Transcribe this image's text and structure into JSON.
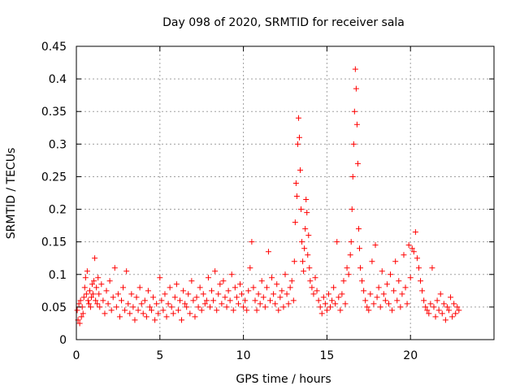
{
  "chart_data": {
    "type": "scatter",
    "title": "Day 098 of 2020, SRMTID for receiver sala",
    "xlabel": "GPS time / hours",
    "ylabel": "SRMTID / TECUs",
    "xlim": [
      0,
      25
    ],
    "ylim": [
      0,
      0.45
    ],
    "xticks": [
      0,
      5,
      10,
      15,
      20
    ],
    "xtick_labels": [
      "0",
      "5",
      "10",
      "15",
      "20"
    ],
    "yticks": [
      0,
      0.05,
      0.1,
      0.15,
      0.2,
      0.25,
      0.3,
      0.35,
      0.4,
      0.45
    ],
    "ytick_labels": [
      "0",
      "0.05",
      "0.1",
      "0.15",
      "0.2",
      "0.25",
      "0.3",
      "0.35",
      "0.4",
      "0.45"
    ],
    "grid": true,
    "marker": "plus",
    "color": "#ff0000",
    "series": [
      {
        "name": "SRMTID",
        "x": [
          0.05,
          0.1,
          0.15,
          0.2,
          0.25,
          0.3,
          0.35,
          0.4,
          0.45,
          0.5,
          0.55,
          0.6,
          0.65,
          0.7,
          0.75,
          0.8,
          0.85,
          0.9,
          0.95,
          1.0,
          1.05,
          1.1,
          1.15,
          1.2,
          1.25,
          1.3,
          1.35,
          1.4,
          1.5,
          1.6,
          1.7,
          1.8,
          1.9,
          2.0,
          2.1,
          2.2,
          2.3,
          2.4,
          2.5,
          2.6,
          2.7,
          2.8,
          2.9,
          3.0,
          3.1,
          3.2,
          3.3,
          3.4,
          3.5,
          3.6,
          3.7,
          3.8,
          3.9,
          4.0,
          4.1,
          4.2,
          4.3,
          4.4,
          4.5,
          4.6,
          4.7,
          4.8,
          4.9,
          5.0,
          5.1,
          5.2,
          5.3,
          5.4,
          5.5,
          5.6,
          5.7,
          5.8,
          5.9,
          6.0,
          6.1,
          6.2,
          6.3,
          6.4,
          6.5,
          6.6,
          6.7,
          6.8,
          6.9,
          7.0,
          7.1,
          7.2,
          7.3,
          7.4,
          7.5,
          7.6,
          7.7,
          7.8,
          7.9,
          8.0,
          8.1,
          8.2,
          8.3,
          8.4,
          8.5,
          8.6,
          8.7,
          8.8,
          8.9,
          9.0,
          9.1,
          9.2,
          9.3,
          9.4,
          9.5,
          9.6,
          9.7,
          9.8,
          9.9,
          10.0,
          10.1,
          10.2,
          10.3,
          10.4,
          10.5,
          10.6,
          10.7,
          10.8,
          10.9,
          11.0,
          11.1,
          11.2,
          11.3,
          11.4,
          11.5,
          11.6,
          11.7,
          11.8,
          11.9,
          12.0,
          12.1,
          12.2,
          12.3,
          12.4,
          12.5,
          12.6,
          12.7,
          12.8,
          12.9,
          13.0,
          13.05,
          13.1,
          13.15,
          13.2,
          13.25,
          13.3,
          13.35,
          13.4,
          13.45,
          13.5,
          13.55,
          13.6,
          13.65,
          13.7,
          13.75,
          13.8,
          13.85,
          13.9,
          13.95,
          14.0,
          14.1,
          14.2,
          14.3,
          14.4,
          14.5,
          14.6,
          14.7,
          14.8,
          14.9,
          15.0,
          15.1,
          15.2,
          15.3,
          15.4,
          15.5,
          15.6,
          15.7,
          15.8,
          15.9,
          16.0,
          16.1,
          16.2,
          16.3,
          16.4,
          16.45,
          16.5,
          16.55,
          16.6,
          16.65,
          16.7,
          16.75,
          16.8,
          16.85,
          16.9,
          16.95,
          17.0,
          17.1,
          17.2,
          17.3,
          17.4,
          17.5,
          17.6,
          17.7,
          17.8,
          17.9,
          18.0,
          18.1,
          18.2,
          18.3,
          18.4,
          18.5,
          18.6,
          18.7,
          18.8,
          18.9,
          19.0,
          19.1,
          19.2,
          19.3,
          19.4,
          19.5,
          19.6,
          19.7,
          19.8,
          19.9,
          20.0,
          20.1,
          20.2,
          20.3,
          20.4,
          20.5,
          20.6,
          20.7,
          20.8,
          20.9,
          21.0,
          21.1,
          21.2,
          21.3,
          21.4,
          21.5,
          21.6,
          21.7,
          21.8,
          21.9,
          22.0,
          22.1,
          22.2,
          22.3,
          22.4,
          22.5,
          22.6,
          22.7,
          22.8,
          22.9
        ],
        "y": [
          0.045,
          0.03,
          0.055,
          0.025,
          0.06,
          0.035,
          0.05,
          0.04,
          0.065,
          0.08,
          0.095,
          0.07,
          0.105,
          0.06,
          0.055,
          0.075,
          0.05,
          0.065,
          0.085,
          0.07,
          0.09,
          0.125,
          0.06,
          0.08,
          0.055,
          0.095,
          0.07,
          0.05,
          0.085,
          0.06,
          0.04,
          0.075,
          0.055,
          0.09,
          0.045,
          0.065,
          0.11,
          0.05,
          0.07,
          0.035,
          0.06,
          0.08,
          0.045,
          0.105,
          0.055,
          0.04,
          0.07,
          0.05,
          0.03,
          0.065,
          0.045,
          0.08,
          0.055,
          0.04,
          0.06,
          0.035,
          0.075,
          0.05,
          0.045,
          0.065,
          0.03,
          0.055,
          0.04,
          0.095,
          0.06,
          0.045,
          0.07,
          0.035,
          0.055,
          0.08,
          0.05,
          0.04,
          0.065,
          0.085,
          0.045,
          0.06,
          0.03,
          0.075,
          0.055,
          0.05,
          0.07,
          0.04,
          0.09,
          0.06,
          0.035,
          0.065,
          0.05,
          0.08,
          0.045,
          0.07,
          0.055,
          0.06,
          0.095,
          0.05,
          0.075,
          0.06,
          0.105,
          0.045,
          0.07,
          0.085,
          0.055,
          0.09,
          0.065,
          0.05,
          0.075,
          0.06,
          0.1,
          0.045,
          0.08,
          0.065,
          0.055,
          0.085,
          0.07,
          0.05,
          0.06,
          0.045,
          0.075,
          0.11,
          0.15,
          0.08,
          0.06,
          0.045,
          0.07,
          0.055,
          0.09,
          0.065,
          0.05,
          0.08,
          0.135,
          0.06,
          0.095,
          0.07,
          0.055,
          0.085,
          0.045,
          0.065,
          0.075,
          0.05,
          0.1,
          0.07,
          0.055,
          0.08,
          0.09,
          0.06,
          0.12,
          0.18,
          0.24,
          0.22,
          0.3,
          0.34,
          0.31,
          0.26,
          0.2,
          0.15,
          0.12,
          0.105,
          0.14,
          0.17,
          0.215,
          0.195,
          0.13,
          0.16,
          0.11,
          0.09,
          0.08,
          0.07,
          0.095,
          0.075,
          0.06,
          0.05,
          0.04,
          0.065,
          0.055,
          0.045,
          0.07,
          0.05,
          0.06,
          0.08,
          0.055,
          0.15,
          0.065,
          0.045,
          0.07,
          0.09,
          0.055,
          0.11,
          0.1,
          0.13,
          0.15,
          0.2,
          0.25,
          0.3,
          0.35,
          0.415,
          0.385,
          0.33,
          0.27,
          0.17,
          0.14,
          0.11,
          0.09,
          0.075,
          0.06,
          0.05,
          0.045,
          0.07,
          0.12,
          0.055,
          0.145,
          0.065,
          0.08,
          0.05,
          0.105,
          0.07,
          0.06,
          0.085,
          0.055,
          0.1,
          0.045,
          0.075,
          0.12,
          0.06,
          0.09,
          0.05,
          0.07,
          0.13,
          0.08,
          0.055,
          0.145,
          0.095,
          0.14,
          0.135,
          0.165,
          0.125,
          0.11,
          0.09,
          0.075,
          0.06,
          0.05,
          0.045,
          0.04,
          0.055,
          0.11,
          0.05,
          0.035,
          0.06,
          0.045,
          0.07,
          0.04,
          0.055,
          0.03,
          0.05,
          0.045,
          0.065,
          0.035,
          0.055,
          0.04,
          0.05,
          0.045
        ]
      }
    ]
  }
}
